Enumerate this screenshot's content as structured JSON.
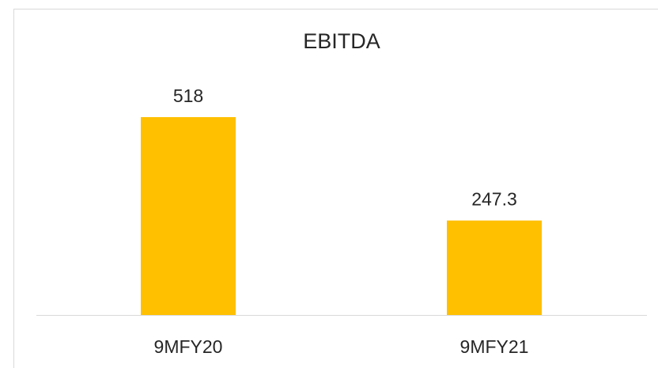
{
  "chart_data": {
    "type": "bar",
    "title": "EBITDA",
    "categories": [
      "9MFY20",
      "9MFY21"
    ],
    "values": [
      518,
      247.3
    ],
    "color": "#ffc000"
  }
}
